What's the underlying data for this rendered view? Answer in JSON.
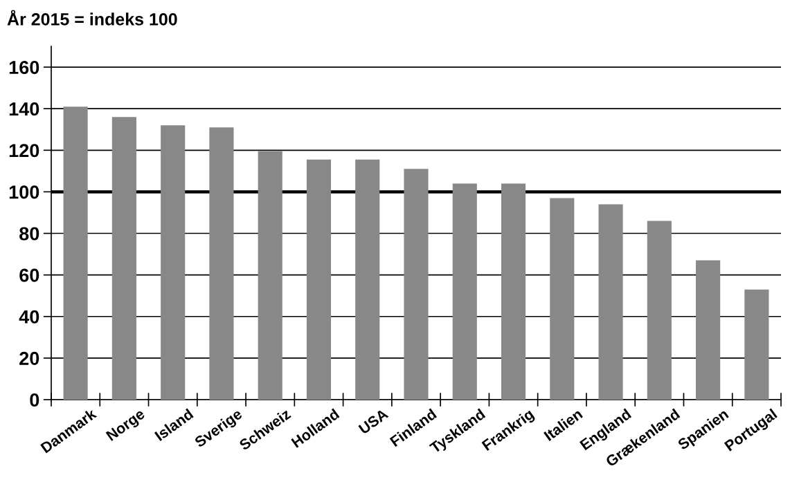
{
  "chart_data": {
    "type": "bar",
    "title": "År 2015 = indeks 100",
    "categories": [
      "Danmark",
      "Norge",
      "Island",
      "Sverige",
      "Schweiz",
      "Holland",
      "USA",
      "Finland",
      "Tyskland",
      "Frankrig",
      "Italien",
      "England",
      "Grækenland",
      "Spanien",
      "Portugal"
    ],
    "values": [
      141,
      136,
      132,
      131,
      119.5,
      115.5,
      115.5,
      111,
      104,
      104,
      97,
      94,
      86,
      67,
      53
    ],
    "color": "#888888",
    "ylim": [
      0,
      170
    ],
    "yticks": [
      0,
      20,
      40,
      60,
      80,
      100,
      120,
      140,
      160
    ],
    "grid": "y",
    "ref_lines": [
      {
        "axis": "y",
        "value": 100,
        "color": "#000000"
      }
    ]
  }
}
